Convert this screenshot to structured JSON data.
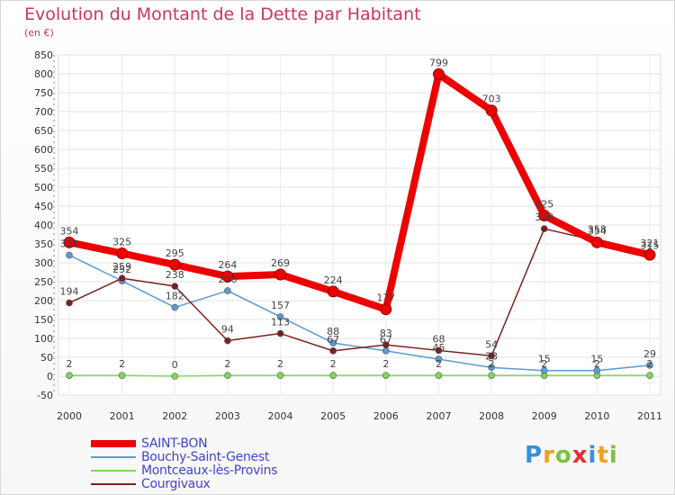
{
  "header": {
    "title": "Evolution du Montant de la Dette par Habitant",
    "subtitle": "(en €)"
  },
  "logo": {
    "letters": [
      {
        "char": "P",
        "color": "#3a8fd8"
      },
      {
        "char": "r",
        "color": "#f0a020"
      },
      {
        "char": "o",
        "color": "#80c040"
      },
      {
        "char": "x",
        "color": "#e83030"
      },
      {
        "char": "i",
        "color": "#3a8fd8"
      },
      {
        "char": "t",
        "color": "#f0a020"
      },
      {
        "char": "i",
        "color": "#80c040"
      }
    ]
  },
  "chart_data": {
    "type": "line",
    "title": "Evolution du Montant de la Dette par Habitant",
    "subtitle": "(en €)",
    "xlabel": "",
    "ylabel": "",
    "ylim": [
      -50,
      850
    ],
    "y_ticks": [
      -50,
      0,
      50,
      100,
      150,
      200,
      250,
      300,
      350,
      400,
      450,
      500,
      550,
      600,
      650,
      700,
      750,
      800,
      850
    ],
    "categories": [
      "2000",
      "2001",
      "2002",
      "2003",
      "2004",
      "2005",
      "2006",
      "2007",
      "2008",
      "2009",
      "2010",
      "2011"
    ],
    "grid": true,
    "legend_position": "bottom-left",
    "series": [
      {
        "name": "SAINT-BON",
        "color": "#ee0000",
        "values": [
          354,
          325,
          295,
          264,
          269,
          224,
          177,
          799,
          703,
          425,
          354,
          321
        ],
        "labels": [
          "354",
          "325",
          "295",
          "264",
          "269",
          "224",
          "177",
          "799",
          "703",
          "425",
          "354",
          "321"
        ]
      },
      {
        "name": "Bouchy-Saint-Genest",
        "color": "#5a9bd5",
        "values": [
          320,
          252,
          182,
          226,
          157,
          88,
          67,
          45,
          23,
          15,
          15,
          29
        ],
        "labels": [
          "320",
          "252",
          "182",
          "226",
          "157",
          "88",
          "67",
          "45",
          "23",
          "15",
          "15",
          "29"
        ]
      },
      {
        "name": "Montceaux-lès-Provins",
        "color": "#7ed85a",
        "values": [
          2,
          2,
          0,
          2,
          2,
          2,
          2,
          2,
          2,
          2,
          2,
          2
        ],
        "labels": [
          "2",
          "2",
          "0",
          "2",
          "2",
          "2",
          "2",
          "2",
          "2",
          "2",
          "2",
          "2"
        ]
      },
      {
        "name": "Courgivaux",
        "color": "#7a2020",
        "values": [
          194,
          259,
          238,
          94,
          113,
          67,
          83,
          68,
          54,
          390,
          358,
          315
        ],
        "labels": [
          "194",
          "259",
          "238",
          "94",
          "113",
          "67",
          "83",
          "68",
          "54",
          "390",
          "358",
          "315"
        ]
      }
    ]
  }
}
